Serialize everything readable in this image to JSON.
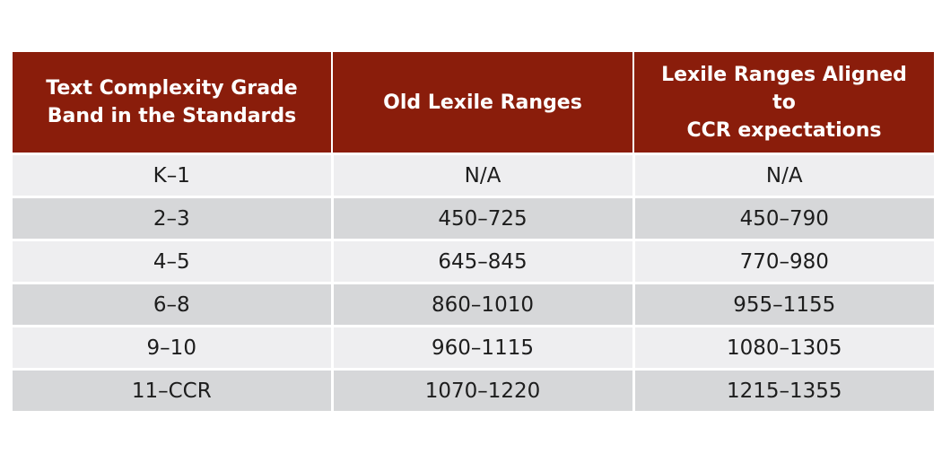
{
  "table": {
    "header": [
      [
        "Text Complexity Grade",
        "Band in the Standards"
      ],
      [
        "Old Lexile Ranges"
      ],
      [
        "Lexile Ranges Aligned",
        "to",
        "CCR expectations"
      ]
    ],
    "rows": [
      [
        "K–1",
        "N/A",
        "N/A"
      ],
      [
        "2–3",
        "450–725",
        "450–790"
      ],
      [
        "4–5",
        "645–845",
        "770–980"
      ],
      [
        "6–8",
        "860–1010",
        "955–1155"
      ],
      [
        "9–10",
        "960–1115",
        "1080–1305"
      ],
      [
        "11–CCR",
        "1070–1220",
        "1215–1355"
      ]
    ]
  }
}
